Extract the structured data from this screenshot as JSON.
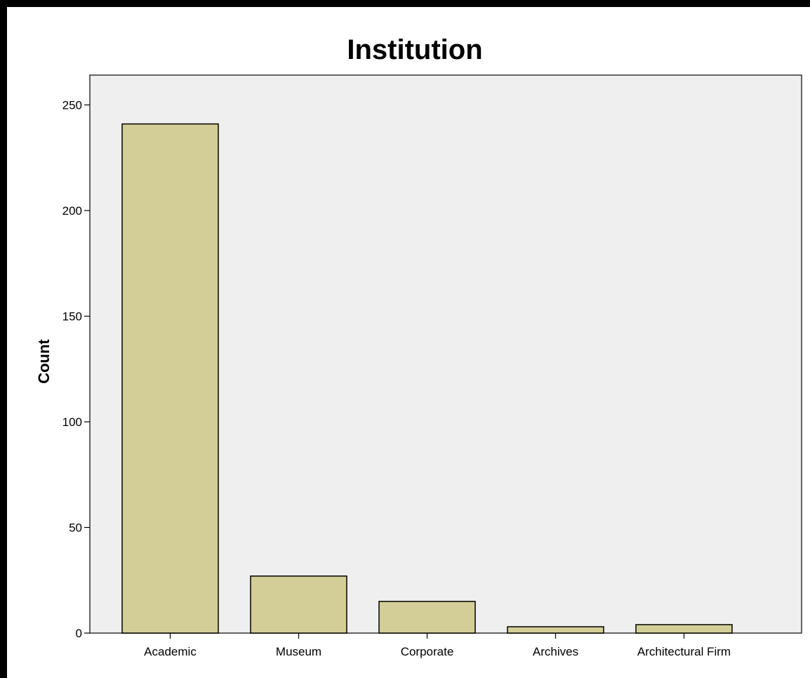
{
  "chart_data": {
    "type": "bar",
    "title": "Institution",
    "xlabel": "",
    "ylabel": "Count",
    "categories": [
      "Academic",
      "Museum",
      "Corporate",
      "Archives",
      "Architectural Firm"
    ],
    "values": [
      241,
      27,
      15,
      3,
      4
    ],
    "ylim": [
      0,
      263
    ],
    "yticks": [
      0,
      50,
      100,
      150,
      200,
      250
    ],
    "grid": false,
    "legend": "none",
    "colors": {
      "bar_fill": "#d3ce97",
      "bar_stroke": "#000000",
      "plot_background": "#efefef",
      "page_background": "#000000"
    }
  }
}
